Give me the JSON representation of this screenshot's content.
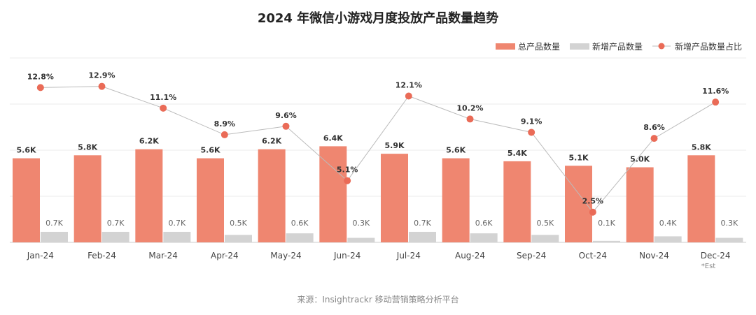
{
  "chart_data": {
    "type": "bar",
    "title": "2024 年微信小游戏月度投放产品数量趋势",
    "categories": [
      "Jan-24",
      "Feb-24",
      "Mar-24",
      "Apr-24",
      "May-24",
      "Jun-24",
      "Jul-24",
      "Aug-24",
      "Sep-24",
      "Oct-24",
      "Nov-24",
      "Dec-24"
    ],
    "category_note": {
      "index": 11,
      "text": "*Est"
    },
    "series": [
      {
        "name": "总产品数量",
        "kind": "bar",
        "color": "#ef8670",
        "values": [
          5.6,
          5.8,
          6.2,
          5.6,
          6.2,
          6.4,
          5.9,
          5.6,
          5.4,
          5.1,
          5.0,
          5.8
        ],
        "labels": [
          "5.6K",
          "5.8K",
          "6.2K",
          "5.6K",
          "6.2K",
          "6.4K",
          "5.9K",
          "5.6K",
          "5.4K",
          "5.1K",
          "5.0K",
          "5.8K"
        ]
      },
      {
        "name": "新增产品数量",
        "kind": "bar",
        "color": "#d3d3d3",
        "values": [
          0.7,
          0.7,
          0.7,
          0.5,
          0.6,
          0.3,
          0.7,
          0.6,
          0.5,
          0.1,
          0.4,
          0.3
        ],
        "labels": [
          "0.7K",
          "0.7K",
          "0.7K",
          "0.5K",
          "0.6K",
          "0.3K",
          "0.7K",
          "0.6K",
          "0.5K",
          "0.1K",
          "0.4K",
          "0.3K"
        ]
      },
      {
        "name": "新增产品数量占比",
        "kind": "line",
        "color": "#ea6b57",
        "line_color": "#bbbbbb",
        "values": [
          12.8,
          12.9,
          11.1,
          8.9,
          9.6,
          5.1,
          12.1,
          10.2,
          9.1,
          2.5,
          8.6,
          11.6
        ],
        "labels": [
          "12.8%",
          "12.9%",
          "11.1%",
          "8.9%",
          "9.6%",
          "5.1%",
          "12.1%",
          "10.2%",
          "9.1%",
          "2.5%",
          "8.6%",
          "11.6%"
        ]
      }
    ],
    "bar_axis_unit": "K",
    "bar_ylim": [
      0,
      10
    ],
    "line_ylim": [
      0,
      16
    ],
    "grid": true,
    "legend_position": "top-right"
  },
  "source": "来源：Insightrackr 移动营销策略分析平台"
}
